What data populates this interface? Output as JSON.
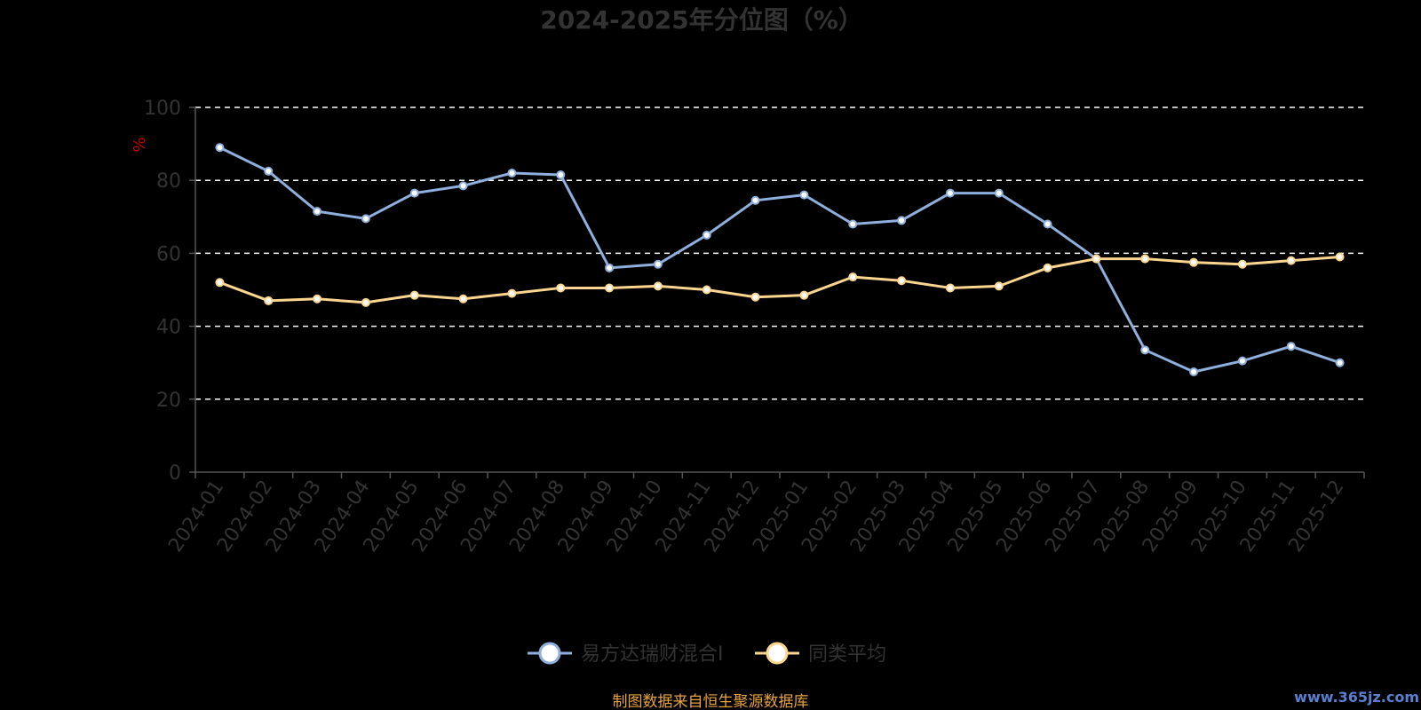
{
  "chart_data": {
    "type": "line",
    "title": "2024-2025年分位图（%）",
    "xlabel": "",
    "ylabel": "%",
    "ylim": [
      0,
      100
    ],
    "yticks": [
      "0",
      "20",
      "40",
      "60",
      "80",
      "100"
    ],
    "grid": true,
    "legend_position": "bottom-center",
    "categories": [
      "2024-01",
      "2024-02",
      "2024-03",
      "2024-04",
      "2024-05",
      "2024-06",
      "2024-07",
      "2024-08",
      "2024-09",
      "2024-10",
      "2024-11",
      "2024-12",
      "2025-01",
      "2025-02",
      "2025-03",
      "2025-04",
      "2025-05",
      "2025-06",
      "2025-07",
      "2025-08",
      "2025-09",
      "2025-10",
      "2025-11",
      "2025-12"
    ],
    "series": [
      {
        "name": "易方达瑞财混合I",
        "color": "#8fb0dc",
        "values": [
          89,
          82.5,
          71.5,
          69.5,
          76.5,
          78.5,
          82,
          81.5,
          56,
          57,
          65,
          74.5,
          76,
          68,
          69,
          76.5,
          76.5,
          68,
          58.5,
          33.5,
          27.5,
          30.5,
          34.5,
          30
        ]
      },
      {
        "name": "同类平均",
        "color": "#fcd68f",
        "values": [
          52,
          47,
          47.5,
          46.5,
          48.5,
          47.5,
          49,
          50.5,
          50.5,
          51,
          50,
          48,
          48.5,
          53.5,
          52.5,
          50.5,
          51,
          56,
          58.5,
          58.5,
          57.5,
          57,
          58,
          59
        ]
      }
    ]
  },
  "footer": {
    "source_text": "制图数据来自恒生聚源数据库",
    "source_color": "#e8a33d",
    "watermark_text": "www.365jz.com",
    "watermark_color": "#5a7fd0"
  },
  "colors": {
    "background": "#000000",
    "axis": "#555555",
    "grid": "#ffffff",
    "text": "#333333",
    "ylabel": "#cc0000"
  }
}
